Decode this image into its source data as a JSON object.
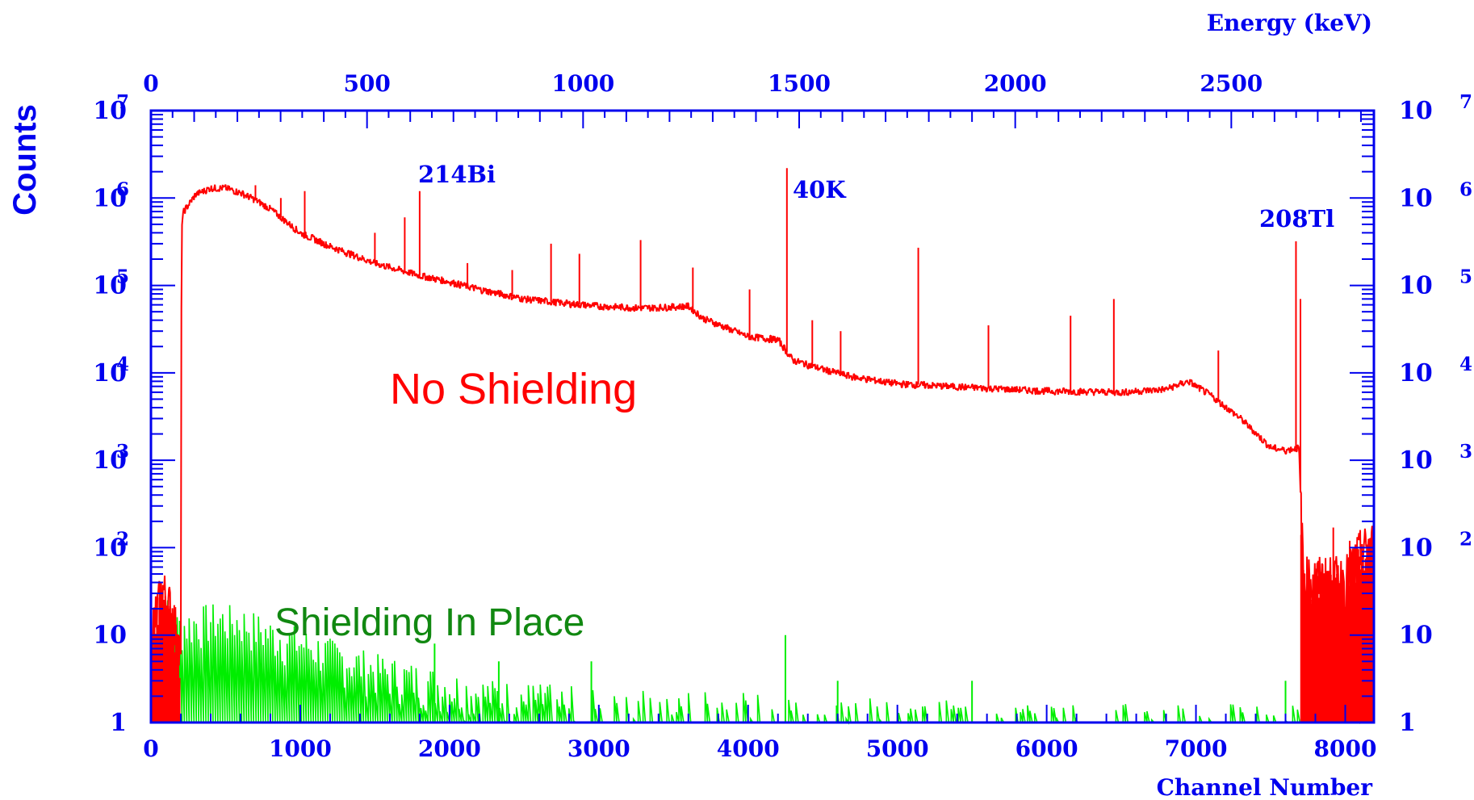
{
  "chart_data": {
    "type": "line",
    "title": "",
    "xlabel": "Channel Number",
    "x2label": "Energy (keV)",
    "ylabel": "Counts",
    "xlim": [
      0,
      8192
    ],
    "x2lim": [
      0,
      2830
    ],
    "ylim": [
      1,
      10000000
    ],
    "y_scale": "log",
    "grid": false,
    "x_ticks": [
      "0",
      "1000",
      "2000",
      "3000",
      "4000",
      "5000",
      "6000",
      "7000",
      "8000"
    ],
    "x2_ticks": [
      "0",
      "500",
      "1000",
      "1500",
      "2000",
      "2500"
    ],
    "y_ticks": [
      {
        "base": "10",
        "exp": "7"
      },
      {
        "base": "10",
        "exp": "6"
      },
      {
        "base": "10",
        "exp": "5"
      },
      {
        "base": "10",
        "exp": "4"
      },
      {
        "base": "10",
        "exp": "3"
      },
      {
        "base": "10",
        "exp": "2"
      },
      {
        "base": "10",
        "exp": ""
      },
      {
        "base": "1",
        "exp": ""
      }
    ],
    "annotations": {
      "bi214": "214Bi",
      "k40": "40K",
      "tl208": "208Tl",
      "no_shielding": "No Shielding",
      "shielding": "Shielding In Place"
    },
    "colors": {
      "axis": "#0000ee",
      "no_shielding": "#ff0000",
      "shielding_text": "#118811",
      "shielding": "#00ee00"
    },
    "series": [
      {
        "key": "no_shielding",
        "x": [
          0,
          80,
          150,
          200,
          205,
          220,
          300,
          400,
          500,
          600,
          700,
          800,
          1000,
          1200,
          1500,
          1800,
          2000,
          2200,
          2500,
          2800,
          3000,
          3300,
          3600,
          3700,
          4000,
          4200,
          4300,
          4500,
          4700,
          5000,
          5500,
          6000,
          6500,
          6800,
          6950,
          7100,
          7300,
          7500,
          7600,
          7690,
          7720,
          7800,
          8000,
          8100,
          8192
        ],
        "y": [
          10,
          30,
          15,
          5,
          500000,
          700000,
          1100000,
          1300000,
          1300000,
          1150000,
          950000,
          750000,
          400000,
          280000,
          180000,
          130000,
          110000,
          90000,
          70000,
          62000,
          58000,
          55000,
          58000,
          42000,
          26000,
          24000,
          14000,
          11000,
          9000,
          7500,
          6800,
          6200,
          6000,
          6500,
          8000,
          5500,
          3000,
          1400,
          1300,
          1400,
          40,
          40,
          40,
          80,
          100
        ]
      },
      {
        "key": "shielding",
        "x": [
          0,
          60,
          100,
          150,
          250,
          400,
          600,
          800,
          1000,
          1200,
          1500,
          1800,
          2000,
          2300,
          2600,
          3000,
          3500,
          4000,
          4500,
          5000,
          6000,
          7000,
          7500,
          8000,
          8192
        ],
        "y": [
          8,
          12,
          20,
          12,
          13,
          15,
          14,
          10,
          8,
          6,
          4,
          3,
          2.5,
          2,
          1.8,
          1.6,
          1.5,
          1.4,
          1.3,
          1.2,
          1.1,
          1.05,
          1.05,
          1.1,
          1.5
        ]
      }
    ],
    "peaks": [
      {
        "x": 700,
        "y": 1400000
      },
      {
        "x": 870,
        "y": 1000000
      },
      {
        "x": 1030,
        "y": 1200000
      },
      {
        "x": 1500,
        "y": 400000
      },
      {
        "x": 1700,
        "y": 600000
      },
      {
        "x": 1800,
        "y": 1200000
      },
      {
        "x": 2120,
        "y": 180000
      },
      {
        "x": 2420,
        "y": 150000
      },
      {
        "x": 2680,
        "y": 300000
      },
      {
        "x": 2870,
        "y": 230000
      },
      {
        "x": 3280,
        "y": 330000
      },
      {
        "x": 3630,
        "y": 160000
      },
      {
        "x": 4010,
        "y": 90000
      },
      {
        "x": 4260,
        "y": 2200000
      },
      {
        "x": 4430,
        "y": 40000
      },
      {
        "x": 4620,
        "y": 30000
      },
      {
        "x": 5140,
        "y": 270000
      },
      {
        "x": 5610,
        "y": 35000
      },
      {
        "x": 6160,
        "y": 45000
      },
      {
        "x": 6450,
        "y": 70000
      },
      {
        "x": 7150,
        "y": 18000
      },
      {
        "x": 7670,
        "y": 320000
      },
      {
        "x": 7700,
        "y": 70000
      },
      {
        "x": 7920,
        "y": 170
      },
      {
        "x": 8030,
        "y": 120
      }
    ],
    "shield_peaks": [
      {
        "x": 1900,
        "y": 8
      },
      {
        "x": 2330,
        "y": 5
      },
      {
        "x": 2950,
        "y": 5
      },
      {
        "x": 4250,
        "y": 10
      },
      {
        "x": 4600,
        "y": 3
      },
      {
        "x": 5500,
        "y": 3
      },
      {
        "x": 7600,
        "y": 3
      },
      {
        "x": 8100,
        "y": 5
      }
    ]
  }
}
